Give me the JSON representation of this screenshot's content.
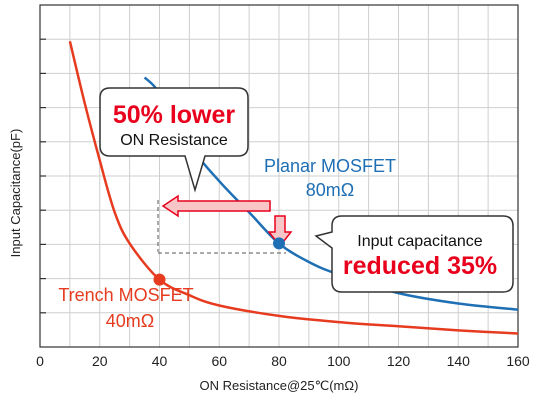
{
  "chart_data": {
    "type": "line",
    "xlabel": "ON Resistance@25℃(mΩ)",
    "ylabel": "Input Capacitance(pF)",
    "xlim": [
      0,
      160
    ],
    "xticks": [
      "0",
      "20",
      "40",
      "60",
      "80",
      "100",
      "120",
      "140",
      "160"
    ],
    "grid": true,
    "y_tick_labels_shown": false,
    "series": [
      {
        "name": "Planar MOSFET",
        "color": "#1f6fb5",
        "x": [
          35,
          40,
          50,
          60,
          70,
          80,
          90,
          100,
          120,
          140,
          160
        ],
        "y": [
          2.6,
          2.45,
          1.95,
          1.6,
          1.3,
          1.0,
          0.82,
          0.7,
          0.52,
          0.42,
          0.36
        ]
      },
      {
        "name": "Trench MOSFET",
        "color": "#e63b1f",
        "x": [
          10,
          15,
          20,
          25,
          30,
          40,
          50,
          60,
          80,
          100,
          120,
          140,
          160
        ],
        "y": [
          2.95,
          2.35,
          1.8,
          1.3,
          1.0,
          0.65,
          0.5,
          0.4,
          0.3,
          0.24,
          0.2,
          0.16,
          0.13
        ]
      }
    ],
    "markers": [
      {
        "series": "Planar MOSFET",
        "x": 80,
        "y": 1.0,
        "label_line1": "Planar MOSFET",
        "label_line2": "80mΩ",
        "color": "#1f6fb5"
      },
      {
        "series": "Trench MOSFET",
        "x": 40,
        "y": 0.65,
        "label_line1": "Trench MOSFET",
        "label_line2": "40mΩ",
        "color": "#e63b1f"
      }
    ],
    "annotations": {
      "resistance": {
        "main": "50% lower",
        "sub": "ON Resistance"
      },
      "capacitance": {
        "main": "reduced 35%",
        "sub": "Input capacitance"
      }
    },
    "colors": {
      "accent": "#e8001c",
      "arrow_fill": "#f9c6c8",
      "arrow_stroke": "#e8001c",
      "grid": "#cfcfcf"
    }
  }
}
